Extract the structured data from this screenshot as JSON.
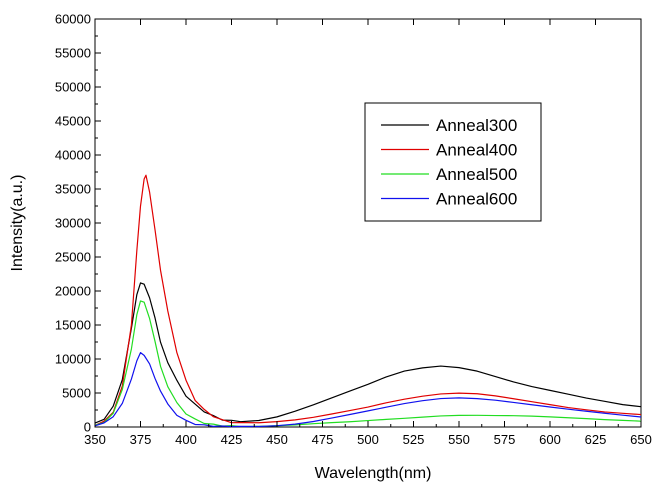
{
  "chart_data": {
    "type": "line",
    "title": "",
    "xlabel": "Wavelength(nm)",
    "ylabel": "Intensity(a.u.)",
    "xlim": [
      350,
      650
    ],
    "ylim": [
      0,
      60000
    ],
    "x_ticks": [
      "350",
      "375",
      "400",
      "425",
      "450",
      "475",
      "500",
      "525",
      "550",
      "575",
      "600",
      "625",
      "650"
    ],
    "y_ticks": [
      "0",
      "5000",
      "10000",
      "15000",
      "20000",
      "25000",
      "30000",
      "35000",
      "40000",
      "45000",
      "50000",
      "55000",
      "60000"
    ],
    "grid": false,
    "legend_position": "top-right",
    "series": [
      {
        "name": "Anneal300",
        "color": "#000000",
        "points": [
          [
            350,
            500
          ],
          [
            355,
            1200
          ],
          [
            360,
            3000
          ],
          [
            365,
            7000
          ],
          [
            370,
            14500
          ],
          [
            373,
            19500
          ],
          [
            375,
            21200
          ],
          [
            377,
            21000
          ],
          [
            380,
            19000
          ],
          [
            383,
            16000
          ],
          [
            386,
            12500
          ],
          [
            390,
            9500
          ],
          [
            395,
            6800
          ],
          [
            400,
            4600
          ],
          [
            405,
            3300
          ],
          [
            410,
            2300
          ],
          [
            415,
            1600
          ],
          [
            420,
            1100
          ],
          [
            425,
            900
          ],
          [
            430,
            850
          ],
          [
            440,
            1000
          ],
          [
            450,
            1500
          ],
          [
            460,
            2300
          ],
          [
            470,
            3200
          ],
          [
            480,
            4200
          ],
          [
            490,
            5200
          ],
          [
            500,
            6200
          ],
          [
            510,
            7300
          ],
          [
            520,
            8200
          ],
          [
            530,
            8700
          ],
          [
            540,
            9000
          ],
          [
            550,
            8800
          ],
          [
            560,
            8300
          ],
          [
            570,
            7500
          ],
          [
            580,
            6700
          ],
          [
            590,
            6000
          ],
          [
            600,
            5400
          ],
          [
            610,
            4800
          ],
          [
            620,
            4200
          ],
          [
            630,
            3700
          ],
          [
            640,
            3200
          ],
          [
            650,
            2900
          ]
        ]
      },
      {
        "name": "Anneal400",
        "color": "#e00000",
        "points": [
          [
            350,
            300
          ],
          [
            355,
            800
          ],
          [
            360,
            2200
          ],
          [
            365,
            6000
          ],
          [
            370,
            15000
          ],
          [
            373,
            26000
          ],
          [
            375,
            32500
          ],
          [
            377,
            36500
          ],
          [
            378,
            37000
          ],
          [
            380,
            34500
          ],
          [
            383,
            29000
          ],
          [
            386,
            23000
          ],
          [
            390,
            17000
          ],
          [
            395,
            11000
          ],
          [
            400,
            6800
          ],
          [
            405,
            4000
          ],
          [
            410,
            2500
          ],
          [
            415,
            1600
          ],
          [
            420,
            1000
          ],
          [
            425,
            700
          ],
          [
            430,
            600
          ],
          [
            440,
            600
          ],
          [
            450,
            800
          ],
          [
            460,
            1100
          ],
          [
            470,
            1500
          ],
          [
            480,
            2000
          ],
          [
            490,
            2500
          ],
          [
            500,
            3000
          ],
          [
            510,
            3600
          ],
          [
            520,
            4100
          ],
          [
            530,
            4500
          ],
          [
            540,
            4800
          ],
          [
            550,
            4900
          ],
          [
            560,
            4800
          ],
          [
            570,
            4500
          ],
          [
            580,
            4100
          ],
          [
            590,
            3700
          ],
          [
            600,
            3300
          ],
          [
            610,
            2900
          ],
          [
            620,
            2600
          ],
          [
            630,
            2300
          ],
          [
            640,
            2100
          ],
          [
            650,
            1900
          ]
        ]
      },
      {
        "name": "Anneal500",
        "color": "#22dd22",
        "points": [
          [
            350,
            200
          ],
          [
            355,
            700
          ],
          [
            360,
            2000
          ],
          [
            365,
            5500
          ],
          [
            370,
            11500
          ],
          [
            373,
            16500
          ],
          [
            375,
            18500
          ],
          [
            377,
            18300
          ],
          [
            380,
            16000
          ],
          [
            383,
            12500
          ],
          [
            386,
            9000
          ],
          [
            390,
            6000
          ],
          [
            395,
            3500
          ],
          [
            400,
            2000
          ],
          [
            405,
            1100
          ],
          [
            410,
            600
          ],
          [
            415,
            350
          ],
          [
            420,
            200
          ],
          [
            425,
            150
          ],
          [
            430,
            100
          ],
          [
            440,
            100
          ],
          [
            450,
            150
          ],
          [
            460,
            250
          ],
          [
            470,
            400
          ],
          [
            480,
            550
          ],
          [
            490,
            700
          ],
          [
            500,
            900
          ],
          [
            510,
            1100
          ],
          [
            520,
            1300
          ],
          [
            530,
            1500
          ],
          [
            540,
            1700
          ],
          [
            550,
            1800
          ],
          [
            560,
            1800
          ],
          [
            570,
            1750
          ],
          [
            580,
            1700
          ],
          [
            590,
            1600
          ],
          [
            600,
            1450
          ],
          [
            610,
            1300
          ],
          [
            620,
            1150
          ],
          [
            630,
            1000
          ],
          [
            640,
            900
          ],
          [
            650,
            800
          ]
        ]
      },
      {
        "name": "Anneal600",
        "color": "#1111ee",
        "points": [
          [
            350,
            200
          ],
          [
            355,
            600
          ],
          [
            360,
            1500
          ],
          [
            365,
            3500
          ],
          [
            370,
            7000
          ],
          [
            373,
            9800
          ],
          [
            375,
            11000
          ],
          [
            377,
            10600
          ],
          [
            380,
            9200
          ],
          [
            383,
            7200
          ],
          [
            386,
            5200
          ],
          [
            390,
            3300
          ],
          [
            395,
            1800
          ],
          [
            400,
            900
          ],
          [
            405,
            450
          ],
          [
            410,
            250
          ],
          [
            415,
            150
          ],
          [
            420,
            100
          ],
          [
            425,
            80
          ],
          [
            430,
            80
          ],
          [
            440,
            100
          ],
          [
            450,
            250
          ],
          [
            460,
            500
          ],
          [
            470,
            900
          ],
          [
            480,
            1400
          ],
          [
            490,
            1900
          ],
          [
            500,
            2400
          ],
          [
            510,
            2900
          ],
          [
            520,
            3400
          ],
          [
            530,
            3800
          ],
          [
            540,
            4100
          ],
          [
            550,
            4200
          ],
          [
            560,
            4100
          ],
          [
            570,
            3900
          ],
          [
            580,
            3600
          ],
          [
            590,
            3300
          ],
          [
            600,
            3000
          ],
          [
            610,
            2700
          ],
          [
            620,
            2400
          ],
          [
            630,
            2100
          ],
          [
            640,
            1800
          ],
          [
            650,
            1500
          ]
        ]
      }
    ]
  }
}
